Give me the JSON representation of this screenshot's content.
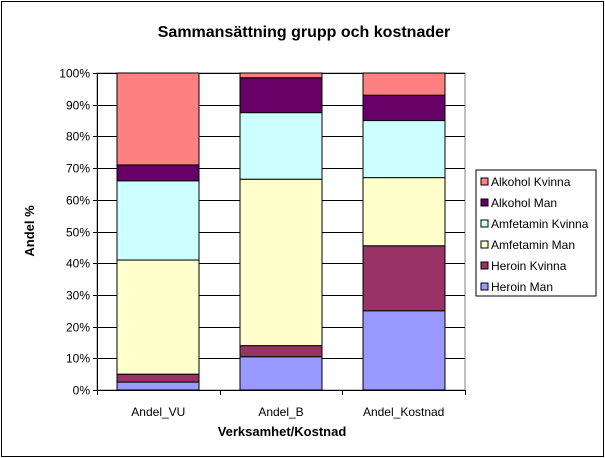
{
  "chart_data": {
    "type": "bar",
    "stacked": true,
    "percent": true,
    "title": "Sammansättning grupp och kostnader",
    "xlabel": "Verksamhet/Kostnad",
    "ylabel": "Andel %",
    "categories": [
      "Andel_VU",
      "Andel_B",
      "Andel_Kostnad"
    ],
    "yticks": [
      "0%",
      "10%",
      "20%",
      "30%",
      "40%",
      "50%",
      "60%",
      "70%",
      "80%",
      "90%",
      "100%"
    ],
    "ylim": [
      0,
      100
    ],
    "grid": true,
    "legend_position": "right",
    "series": [
      {
        "name": "Heroin Man",
        "color": "#9999FF",
        "values": [
          2.5,
          10.5,
          25.0
        ]
      },
      {
        "name": "Heroin Kvinna",
        "color": "#993366",
        "values": [
          2.5,
          3.5,
          20.5
        ]
      },
      {
        "name": "Amfetamin Man",
        "color": "#FFFFCC",
        "values": [
          36.0,
          52.5,
          21.5
        ]
      },
      {
        "name": "Amfetamin Kvinna",
        "color": "#CCFFFF",
        "values": [
          25.0,
          21.0,
          18.0
        ]
      },
      {
        "name": "Alkohol Man",
        "color": "#660066",
        "values": [
          5.0,
          11.0,
          8.0
        ]
      },
      {
        "name": "Alkohol Kvinna",
        "color": "#FF8080",
        "values": [
          29.0,
          1.5,
          7.0
        ]
      }
    ],
    "plot_background": "#ffffff",
    "gridline_color": "#000000"
  }
}
